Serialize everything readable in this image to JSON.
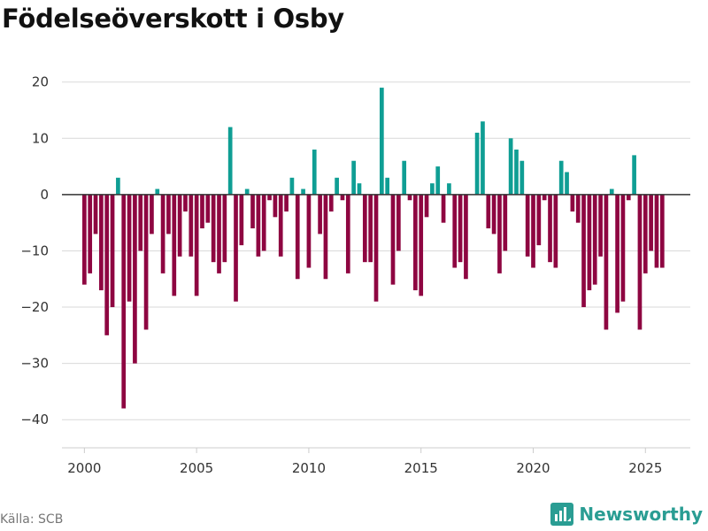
{
  "title": "Födelseöverskott i Osby",
  "source": "Källa: SCB",
  "brand": {
    "name": "Newsworthy",
    "icon": "newsworthy-logo-icon"
  },
  "colors": {
    "positive": "#0f9e94",
    "negative": "#8e0641",
    "grid": "#d9d9d9",
    "zero": "#333333",
    "text": "#333333"
  },
  "chart_data": {
    "type": "bar",
    "title": "Födelseöverskott i Osby",
    "xlabel": "",
    "ylabel": "",
    "ylim": [
      -45,
      22
    ],
    "xlim": [
      1999.0,
      2027.0
    ],
    "yticks": [
      20,
      10,
      0,
      -10,
      -20,
      -30,
      -40
    ],
    "ytick_labels": [
      "20",
      "10",
      "0",
      "−10",
      "−20",
      "−30",
      "−40"
    ],
    "xticks": [
      2000,
      2005,
      2010,
      2015,
      2020,
      2025
    ],
    "xtick_labels": [
      "2000",
      "2005",
      "2010",
      "2015",
      "2020",
      "2025"
    ],
    "start_year": 2000,
    "periods_per_year": 4,
    "grid": true,
    "values": [
      -16,
      -14,
      -7,
      -17,
      -25,
      -20,
      3,
      -38,
      -19,
      -30,
      -10,
      -24,
      -7,
      1,
      -14,
      -7,
      -18,
      -11,
      -3,
      -11,
      -18,
      -6,
      -5,
      -12,
      -14,
      -12,
      12,
      -19,
      -9,
      1,
      -6,
      -11,
      -10,
      -1,
      -4,
      -11,
      -3,
      3,
      -15,
      1,
      -13,
      8,
      -7,
      -15,
      -3,
      3,
      -1,
      -14,
      6,
      2,
      -12,
      -12,
      -19,
      19,
      3,
      -16,
      -10,
      6,
      -1,
      -17,
      -18,
      -4,
      2,
      5,
      -5,
      2,
      -13,
      -12,
      -15,
      0,
      11,
      13,
      -6,
      -7,
      -14,
      -10,
      10,
      8,
      6,
      -11,
      -13,
      -9,
      -1,
      -12,
      -13,
      6,
      4,
      -3,
      -5,
      -20,
      -17,
      -16,
      -11,
      -24,
      1,
      -21,
      -19,
      -1,
      7,
      -24,
      -14,
      -10,
      -13,
      -13
    ]
  }
}
